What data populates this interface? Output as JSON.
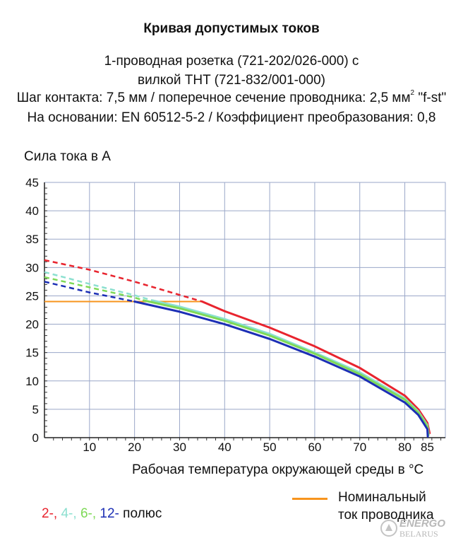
{
  "title": "Кривая допустимых токов",
  "subtitle_lines": {
    "line1": "1-проводная розетка (721-202/026-000) с",
    "line2": "вилкой THT (721-832/001-000)",
    "line3_main": "Шаг контакта: 7,5 мм / поперечное сечение проводника: 2,5 мм",
    "line3_sup": "2",
    "line3_end": " \"f-st\"",
    "line4": "На основании: EN 60512-5-2 / Коэффициент преобразования: 0,8"
  },
  "legend": {
    "poles": [
      {
        "label": "2-",
        "color": "#e8242e"
      },
      {
        "label": "4-",
        "color": "#8ce0d0"
      },
      {
        "label": "6-",
        "color": "#7ed957"
      },
      {
        "label": "12-",
        "color": "#1c2fb5"
      }
    ],
    "separator": ",",
    "suffix": "полюс",
    "nominal_line1": "Номинальный",
    "nominal_line2": "ток проводника",
    "nominal_color": "#f7941d"
  },
  "watermark": {
    "line1": "ENERGO",
    "line2": "BELARUS"
  },
  "chart_data": {
    "type": "line",
    "ylabel": "Сила тока в А",
    "xlabel": "Рабочая температура окружающей среды в °C",
    "xlim": [
      0,
      89
    ],
    "ylim": [
      0,
      45
    ],
    "x_ticks": [
      "10",
      "20",
      "30",
      "40",
      "50",
      "60",
      "70",
      "80",
      "85"
    ],
    "y_ticks": [
      "0",
      "5",
      "10",
      "15",
      "20",
      "25",
      "30",
      "35",
      "40",
      "45"
    ],
    "grid": true,
    "nominal_current": {
      "name": "Номинальный ток проводника",
      "color": "#f7941d",
      "points": [
        [
          0,
          24
        ],
        [
          35,
          24
        ]
      ]
    },
    "series": [
      {
        "name": "2-",
        "color": "#e8242e",
        "dashed": [
          [
            0,
            31.3
          ],
          [
            10,
            29.6
          ],
          [
            20,
            27.5
          ],
          [
            35,
            24.0
          ]
        ],
        "solid": [
          [
            35,
            24.0
          ],
          [
            40,
            22.3
          ],
          [
            50,
            19.4
          ],
          [
            60,
            16.1
          ],
          [
            70,
            12.3
          ],
          [
            80,
            7.4
          ],
          [
            83,
            5.0
          ],
          [
            85,
            2.6
          ],
          [
            85.5,
            0.8
          ]
        ]
      },
      {
        "name": "4-",
        "color": "#8ce0d0",
        "dashed": [
          [
            0,
            29.2
          ],
          [
            10,
            27.1
          ],
          [
            20,
            25.1
          ],
          [
            24,
            24.2
          ]
        ],
        "solid": [
          [
            24,
            24.2
          ],
          [
            30,
            23.1
          ],
          [
            40,
            20.9
          ],
          [
            50,
            18.3
          ],
          [
            60,
            15.0
          ],
          [
            70,
            11.5
          ],
          [
            80,
            6.9
          ],
          [
            83,
            4.6
          ],
          [
            85,
            2.2
          ],
          [
            85.3,
            0.5
          ]
        ]
      },
      {
        "name": "6-",
        "color": "#7ed957",
        "dashed": [
          [
            0,
            28.3
          ],
          [
            10,
            26.5
          ],
          [
            20,
            24.7
          ],
          [
            22,
            24.2
          ]
        ],
        "solid": [
          [
            22,
            24.2
          ],
          [
            30,
            22.8
          ],
          [
            40,
            20.6
          ],
          [
            50,
            18.0
          ],
          [
            60,
            14.8
          ],
          [
            70,
            11.2
          ],
          [
            80,
            6.7
          ],
          [
            83,
            4.4
          ],
          [
            85,
            2.0
          ],
          [
            85.2,
            0.4
          ]
        ]
      },
      {
        "name": "12-",
        "color": "#1c2fb5",
        "dashed": [
          [
            0,
            27.5
          ],
          [
            10,
            25.6
          ],
          [
            20,
            24.0
          ]
        ],
        "solid": [
          [
            20,
            24.0
          ],
          [
            30,
            22.2
          ],
          [
            40,
            20.0
          ],
          [
            50,
            17.4
          ],
          [
            60,
            14.3
          ],
          [
            70,
            10.8
          ],
          [
            80,
            6.2
          ],
          [
            83,
            4.0
          ],
          [
            85,
            1.5
          ],
          [
            85.1,
            0.2
          ]
        ]
      }
    ]
  }
}
